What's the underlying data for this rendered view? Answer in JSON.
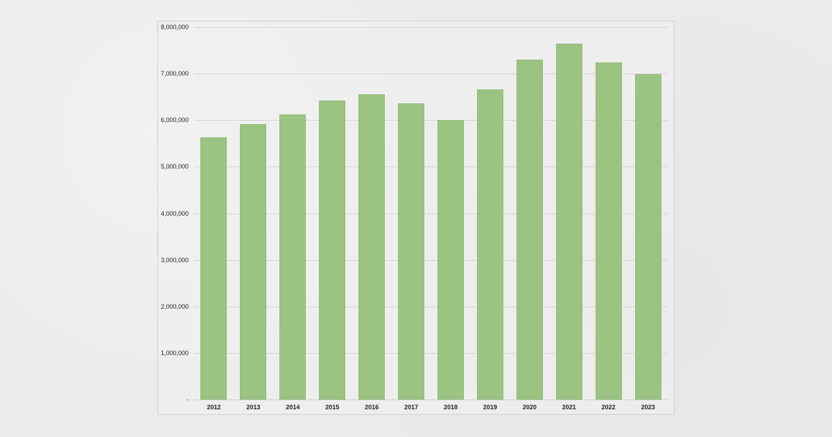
{
  "chart_data": {
    "type": "bar",
    "title": "",
    "xlabel": "",
    "ylabel": "",
    "categories": [
      "2012",
      "2013",
      "2014",
      "2015",
      "2016",
      "2017",
      "2018",
      "2019",
      "2020",
      "2021",
      "2022",
      "2023"
    ],
    "values": [
      5630000,
      5910000,
      6130000,
      6420000,
      6560000,
      6360000,
      6000000,
      6660000,
      7300000,
      7650000,
      7240000,
      6980000
    ],
    "ylim": [
      0,
      8000000
    ],
    "yticks": [
      0,
      1000000,
      2000000,
      3000000,
      4000000,
      5000000,
      6000000,
      7000000,
      8000000
    ],
    "ytick_labels": [
      "-",
      "1,000,000",
      "2,000,000",
      "3,000,000",
      "4,000,000",
      "5,000,000",
      "6,000,000",
      "7,000,000",
      "8,000,000"
    ],
    "grid": true,
    "legend": "none",
    "bar_color": "#9bc482",
    "background_color": "#ebebeb"
  }
}
